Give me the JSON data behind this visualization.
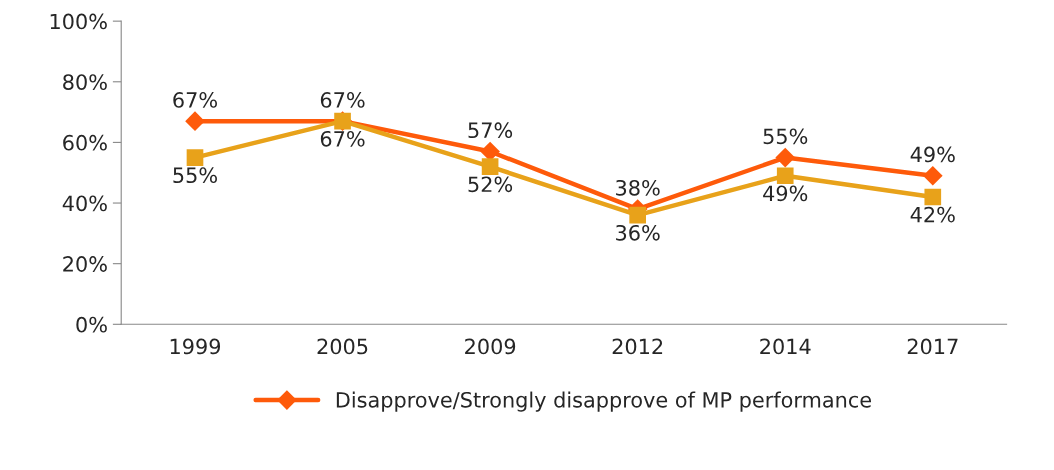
{
  "chart_data": {
    "type": "line",
    "categories": [
      "1999",
      "2005",
      "2009",
      "2012",
      "2014",
      "2017"
    ],
    "series": [
      {
        "name": "Disapprove/Strongly disapprove of MP performance",
        "color": "#fe5a0a",
        "marker": "diamond",
        "values": [
          67,
          67,
          57,
          38,
          55,
          49
        ],
        "value_labels": [
          "67%",
          "67%",
          "57%",
          "38%",
          "55%",
          "49%"
        ]
      },
      {
        "color": "#e8a21a",
        "marker": "square",
        "values": [
          55,
          67,
          52,
          36,
          49,
          42
        ],
        "value_labels": [
          "55%",
          "67%",
          "52%",
          "36%",
          "49%",
          "42%"
        ]
      }
    ],
    "ylim": [
      0,
      100
    ],
    "yticks": [
      {
        "value": 0,
        "label": "0%"
      },
      {
        "value": 20,
        "label": "20%"
      },
      {
        "value": 40,
        "label": "40%"
      },
      {
        "value": 60,
        "label": "60%"
      },
      {
        "value": 80,
        "label": "80%"
      },
      {
        "value": 100,
        "label": "100%"
      }
    ],
    "grid": false,
    "legend": "bottom",
    "line_style": "solid"
  }
}
